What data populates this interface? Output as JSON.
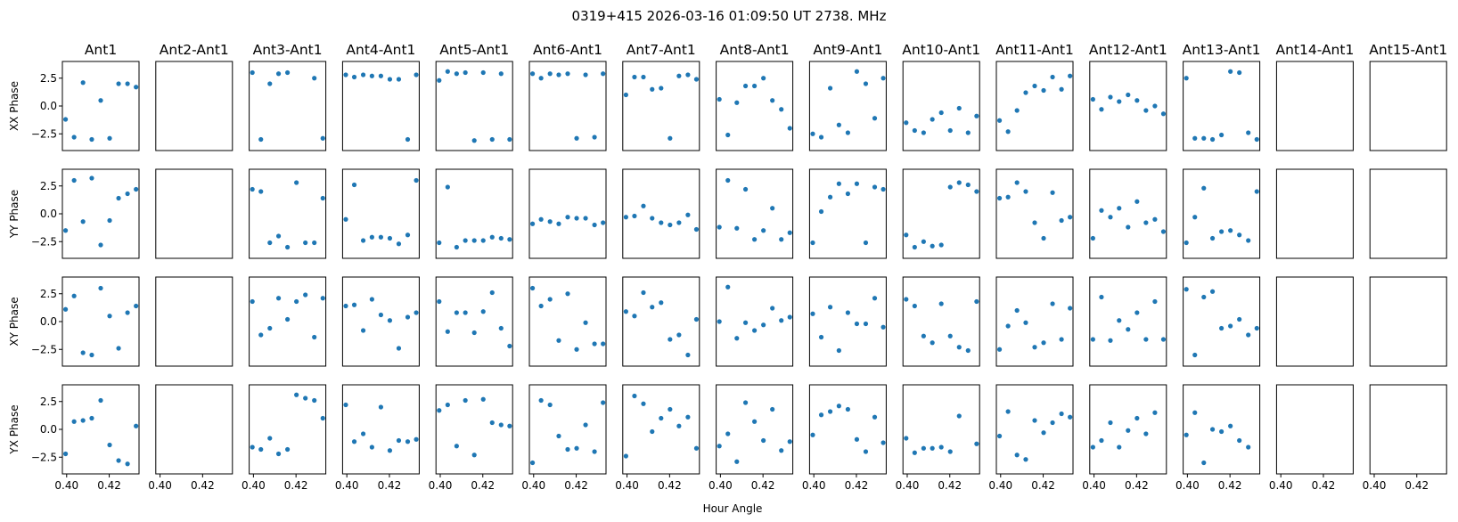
{
  "figure": {
    "title": "0319+415  2026-03-16 01:09:50 UT  2738. MHz",
    "xlabel": "Hour Angle"
  },
  "chart_data": {
    "type": "scatter",
    "marker_color": "#1f77b4",
    "columns": [
      "Ant1",
      "Ant2-Ant1",
      "Ant3-Ant1",
      "Ant4-Ant1",
      "Ant5-Ant1",
      "Ant6-Ant1",
      "Ant7-Ant1",
      "Ant8-Ant1",
      "Ant9-Ant1",
      "Ant10-Ant1",
      "Ant11-Ant1",
      "Ant12-Ant1",
      "Ant13-Ant1",
      "Ant14-Ant1",
      "Ant15-Ant1"
    ],
    "rows": [
      "XX Phase",
      "YY Phase",
      "XY Phase",
      "YX Phase"
    ],
    "xlim": [
      0.398,
      0.434
    ],
    "ylim": [
      -4.0,
      4.0
    ],
    "xticks": [
      0.4,
      0.42
    ],
    "xtick_labels": [
      "0.40",
      "0.42"
    ],
    "yticks": [
      2.5,
      0.0,
      -2.5
    ],
    "ytick_labels": [
      "2.5",
      "0.0",
      "−2.5"
    ],
    "x": [
      0.3995,
      0.4035,
      0.4077,
      0.4118,
      0.416,
      0.4202,
      0.4244,
      0.4286,
      0.4326
    ],
    "phase": [
      [
        [
          -1.2,
          -2.8,
          2.1,
          -3.0,
          0.5,
          -2.9,
          2.0,
          2.0,
          1.7
        ],
        null,
        [
          3.0,
          -3.0,
          2.0,
          2.9,
          3.0,
          null,
          null,
          2.5,
          -2.9
        ],
        [
          2.8,
          2.6,
          2.8,
          2.7,
          2.7,
          2.4,
          2.4,
          -3.0,
          2.8
        ],
        [
          2.3,
          3.1,
          2.9,
          3.0,
          -3.1,
          3.0,
          -3.0,
          2.9,
          -3.0
        ],
        [
          2.9,
          2.5,
          2.9,
          2.8,
          2.9,
          -2.9,
          2.8,
          -2.8,
          2.9
        ],
        [
          1.0,
          2.6,
          2.6,
          1.5,
          1.6,
          -2.9,
          2.7,
          2.8,
          2.4
        ],
        [
          0.6,
          -2.6,
          0.3,
          1.8,
          1.8,
          2.5,
          0.5,
          -0.3,
          -2.0
        ],
        [
          -2.5,
          -2.8,
          1.6,
          -1.7,
          -2.4,
          3.1,
          2.0,
          -1.1,
          2.5
        ],
        [
          -1.5,
          -2.2,
          -2.4,
          -1.2,
          -0.6,
          -2.2,
          -0.2,
          -2.4,
          -0.9
        ],
        [
          -1.3,
          -2.3,
          -0.4,
          1.2,
          1.8,
          1.4,
          2.6,
          1.5,
          2.7
        ],
        [
          0.6,
          -0.3,
          0.8,
          0.4,
          1.0,
          0.5,
          -0.4,
          0.0,
          -0.7
        ],
        [
          2.5,
          -2.9,
          -2.9,
          -3.0,
          -2.6,
          3.1,
          3.0,
          -2.4,
          -3.0
        ],
        null,
        null
      ],
      [
        [
          -1.5,
          3.0,
          -0.7,
          3.2,
          -2.8,
          -0.6,
          1.4,
          1.8,
          2.2
        ],
        null,
        [
          2.2,
          2.0,
          -2.6,
          -2.0,
          -3.0,
          2.8,
          -2.6,
          -2.6,
          1.4
        ],
        [
          -0.5,
          2.6,
          -2.4,
          -2.1,
          -2.1,
          -2.2,
          -2.7,
          -1.9,
          3.0
        ],
        [
          -2.6,
          2.4,
          -3.0,
          -2.4,
          -2.4,
          -2.4,
          -2.1,
          -2.2,
          -2.3
        ],
        [
          -0.9,
          -0.5,
          -0.7,
          -0.9,
          -0.3,
          -0.4,
          -0.4,
          -1.0,
          -0.8
        ],
        [
          -0.3,
          -0.2,
          0.7,
          -0.4,
          -0.8,
          -1.0,
          -0.8,
          -0.1,
          -1.4
        ],
        [
          -1.2,
          3.0,
          -1.3,
          2.2,
          -2.3,
          -1.5,
          0.5,
          -2.3,
          -1.7
        ],
        [
          -2.6,
          0.2,
          1.5,
          2.7,
          1.8,
          2.7,
          -2.6,
          2.4,
          2.2
        ],
        [
          -1.9,
          -3.0,
          -2.5,
          -2.9,
          -2.8,
          2.4,
          2.8,
          2.6,
          2.0
        ],
        [
          1.4,
          1.5,
          2.8,
          2.0,
          -0.8,
          -2.2,
          1.9,
          -0.6,
          -0.3
        ],
        [
          -2.2,
          0.3,
          -0.3,
          0.5,
          -1.2,
          1.1,
          -0.8,
          -0.5,
          -1.6
        ],
        [
          -2.6,
          -0.3,
          2.3,
          -2.2,
          -1.6,
          -1.5,
          -1.9,
          -2.4,
          2.0
        ],
        null,
        null
      ],
      [
        [
          1.1,
          2.3,
          -2.8,
          -3.0,
          3.0,
          0.5,
          -2.4,
          0.8,
          1.4
        ],
        null,
        [
          1.8,
          -1.2,
          -0.6,
          2.1,
          0.2,
          1.8,
          2.4,
          -1.4,
          2.1
        ],
        [
          1.4,
          1.5,
          -0.8,
          2.0,
          0.6,
          0.1,
          -2.4,
          0.4,
          0.8
        ],
        [
          1.8,
          -0.9,
          0.8,
          0.8,
          -1.0,
          0.9,
          2.6,
          -0.6,
          -2.2
        ],
        [
          3.0,
          1.4,
          2.0,
          -1.7,
          2.5,
          -2.5,
          -0.1,
          -2.0,
          -2.0
        ],
        [
          0.9,
          0.5,
          2.6,
          1.3,
          1.7,
          -1.6,
          -1.2,
          -3.0,
          0.2
        ],
        [
          0.0,
          3.1,
          -1.5,
          -0.1,
          -0.8,
          -0.3,
          1.2,
          0.1,
          0.4
        ],
        [
          0.7,
          -1.4,
          1.3,
          -2.6,
          0.8,
          -0.2,
          -0.2,
          2.1,
          -0.5
        ],
        [
          2.0,
          1.4,
          -1.3,
          -1.9,
          1.6,
          -1.3,
          -2.3,
          -2.6,
          1.8
        ],
        [
          -2.5,
          -0.4,
          1.0,
          -0.1,
          -2.3,
          -1.9,
          1.6,
          -1.6,
          1.2
        ],
        [
          -1.6,
          2.2,
          -1.7,
          0.1,
          -0.7,
          0.8,
          -1.6,
          1.8,
          -1.6
        ],
        [
          2.9,
          -3.0,
          2.2,
          2.7,
          -0.6,
          -0.4,
          0.2,
          -1.2,
          -0.6
        ],
        null,
        null
      ],
      [
        [
          -2.2,
          0.7,
          0.8,
          1.0,
          2.6,
          -1.4,
          -2.8,
          -3.1,
          0.3
        ],
        null,
        [
          -1.6,
          -1.8,
          -0.8,
          -2.2,
          -1.8,
          3.1,
          2.8,
          2.6,
          1.0
        ],
        [
          2.2,
          -1.1,
          -0.4,
          -1.6,
          2.0,
          -1.9,
          -1.0,
          -1.1,
          -0.9
        ],
        [
          1.7,
          2.2,
          -1.5,
          2.6,
          -2.3,
          2.7,
          0.6,
          0.4,
          0.3
        ],
        [
          -3.0,
          2.6,
          2.2,
          -0.6,
          -1.8,
          -1.7,
          0.4,
          -2.0,
          2.4
        ],
        [
          -2.4,
          3.0,
          2.3,
          -0.2,
          1.0,
          1.8,
          0.3,
          1.1,
          -1.7
        ],
        [
          -1.5,
          -0.4,
          -2.9,
          2.4,
          0.7,
          -1.0,
          1.8,
          -1.9,
          -1.1
        ],
        [
          -0.5,
          1.3,
          1.6,
          2.1,
          1.8,
          -0.9,
          -2.0,
          1.1,
          -1.2
        ],
        [
          -0.8,
          -2.1,
          -1.7,
          -1.7,
          -1.6,
          -2.0,
          1.2,
          null,
          -1.3
        ],
        [
          -0.6,
          1.6,
          -2.3,
          -2.7,
          0.8,
          -0.3,
          0.6,
          1.4,
          1.1
        ],
        [
          -1.6,
          -1.0,
          0.6,
          -1.6,
          -0.1,
          1.0,
          -0.4,
          1.5,
          null
        ],
        [
          -0.5,
          1.5,
          -3.0,
          0.0,
          -0.2,
          0.3,
          -1.0,
          -1.6,
          null
        ],
        null,
        null
      ]
    ]
  }
}
